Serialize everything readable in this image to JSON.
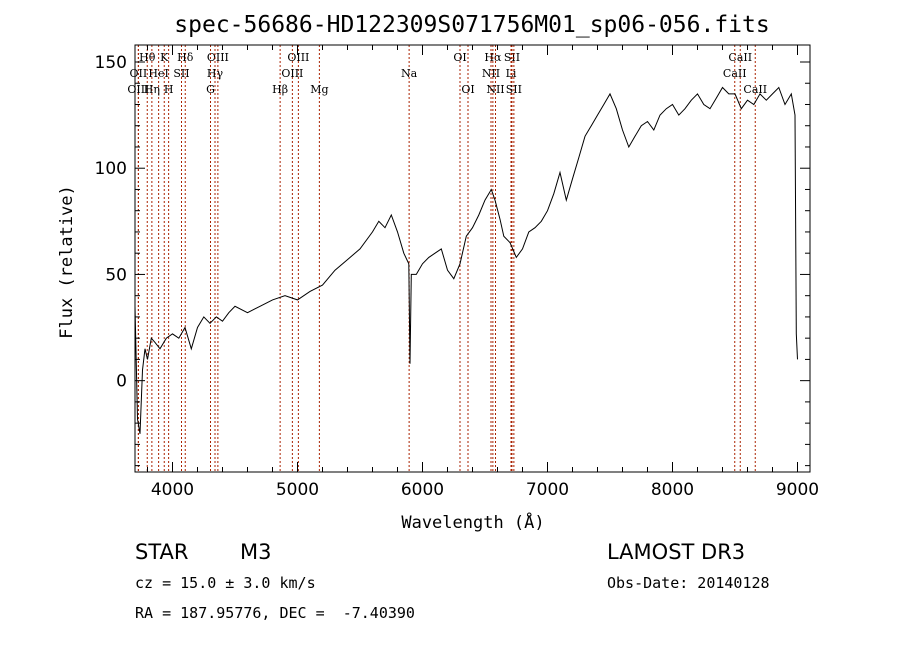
{
  "chart_data": {
    "type": "line",
    "title": "spec-56686-HD122309S071756M01_sp06-056.fits",
    "xlabel": "Wavelength (Å)",
    "ylabel": "Flux (relative)",
    "xlim": [
      3700,
      9100
    ],
    "ylim": [
      -43,
      158
    ],
    "xticks": [
      4000,
      5000,
      6000,
      7000,
      8000,
      9000
    ],
    "yticks": [
      0,
      50,
      100,
      150
    ],
    "series": [
      {
        "name": "flux",
        "x": [
          3700,
          3720,
          3740,
          3760,
          3780,
          3800,
          3830,
          3860,
          3900,
          3950,
          4000,
          4050,
          4100,
          4150,
          4200,
          4250,
          4300,
          4350,
          4400,
          4450,
          4500,
          4600,
          4700,
          4800,
          4900,
          5000,
          5100,
          5200,
          5300,
          5400,
          5500,
          5600,
          5650,
          5700,
          5750,
          5800,
          5850,
          5890,
          5900,
          5910,
          5950,
          6000,
          6050,
          6100,
          6150,
          6200,
          6250,
          6300,
          6350,
          6400,
          6450,
          6500,
          6550,
          6580,
          6620,
          6650,
          6700,
          6750,
          6800,
          6850,
          6900,
          6950,
          7000,
          7050,
          7100,
          7150,
          7200,
          7250,
          7300,
          7350,
          7400,
          7450,
          7500,
          7550,
          7600,
          7650,
          7700,
          7750,
          7800,
          7850,
          7900,
          7950,
          8000,
          8050,
          8100,
          8150,
          8200,
          8250,
          8300,
          8350,
          8400,
          8450,
          8500,
          8550,
          8600,
          8650,
          8700,
          8750,
          8800,
          8850,
          8900,
          8950,
          8980,
          8990,
          9000
        ],
        "y": [
          35,
          -18,
          -25,
          5,
          15,
          10,
          20,
          18,
          15,
          20,
          22,
          20,
          25,
          15,
          25,
          30,
          27,
          30,
          28,
          32,
          35,
          32,
          35,
          38,
          40,
          38,
          42,
          45,
          52,
          57,
          62,
          70,
          75,
          72,
          78,
          70,
          60,
          55,
          8,
          50,
          50,
          55,
          58,
          60,
          62,
          52,
          48,
          55,
          68,
          72,
          78,
          85,
          90,
          85,
          76,
          68,
          65,
          58,
          62,
          70,
          72,
          75,
          80,
          88,
          98,
          85,
          95,
          105,
          115,
          120,
          125,
          130,
          135,
          128,
          118,
          110,
          115,
          120,
          122,
          118,
          125,
          128,
          130,
          125,
          128,
          132,
          135,
          130,
          128,
          133,
          138,
          135,
          135,
          128,
          132,
          130,
          135,
          132,
          135,
          138,
          130,
          135,
          125,
          22,
          10
        ]
      }
    ],
    "spectral_lines": [
      {
        "label": "Hθ",
        "x": 3798,
        "row": 0
      },
      {
        "label": "OII",
        "x": 3727,
        "row": 1
      },
      {
        "label": "OIII",
        "x": 3727,
        "row": 2
      },
      {
        "label": "HeI",
        "x": 3889,
        "row": 1
      },
      {
        "label": "Hη",
        "x": 3835,
        "row": 2
      },
      {
        "label": "K",
        "x": 3934,
        "row": 0
      },
      {
        "label": "H",
        "x": 3969,
        "row": 2
      },
      {
        "label": "SII",
        "x": 4072,
        "row": 1
      },
      {
        "label": "Hδ",
        "x": 4102,
        "row": 0
      },
      {
        "label": "OIII",
        "x": 4363,
        "row": 0
      },
      {
        "label": "Hγ",
        "x": 4340,
        "row": 1
      },
      {
        "label": "G",
        "x": 4304,
        "row": 2
      },
      {
        "label": "Hβ",
        "x": 4861,
        "row": 2
      },
      {
        "label": "OIII",
        "x": 5007,
        "row": 0
      },
      {
        "label": "OIII",
        "x": 4959,
        "row": 1
      },
      {
        "label": "Mg",
        "x": 5175,
        "row": 2
      },
      {
        "label": "Na",
        "x": 5893,
        "row": 1
      },
      {
        "label": "OI",
        "x": 6300,
        "row": 0
      },
      {
        "label": "OI",
        "x": 6364,
        "row": 2
      },
      {
        "label": "Hα",
        "x": 6563,
        "row": 0
      },
      {
        "label": "SII",
        "x": 6716,
        "row": 0
      },
      {
        "label": "NII",
        "x": 6548,
        "row": 1
      },
      {
        "label": "Li",
        "x": 6708,
        "row": 1
      },
      {
        "label": "NII",
        "x": 6584,
        "row": 2
      },
      {
        "label": "SII",
        "x": 6731,
        "row": 2
      },
      {
        "label": "CaII",
        "x": 8542,
        "row": 0
      },
      {
        "label": "CaII",
        "x": 8498,
        "row": 1
      },
      {
        "label": "CaII",
        "x": 8662,
        "row": 2
      }
    ],
    "line_marker_color": "#aa2200",
    "series_color": "#000000"
  },
  "info": {
    "object_class": "STAR",
    "subclass": "M3",
    "survey": "LAMOST DR3",
    "cz": "cz = 15.0 ± 3.0 km/s",
    "obs_date": "Obs-Date: 20140128",
    "coords": "RA = 187.95776, DEC =  -7.40390"
  }
}
